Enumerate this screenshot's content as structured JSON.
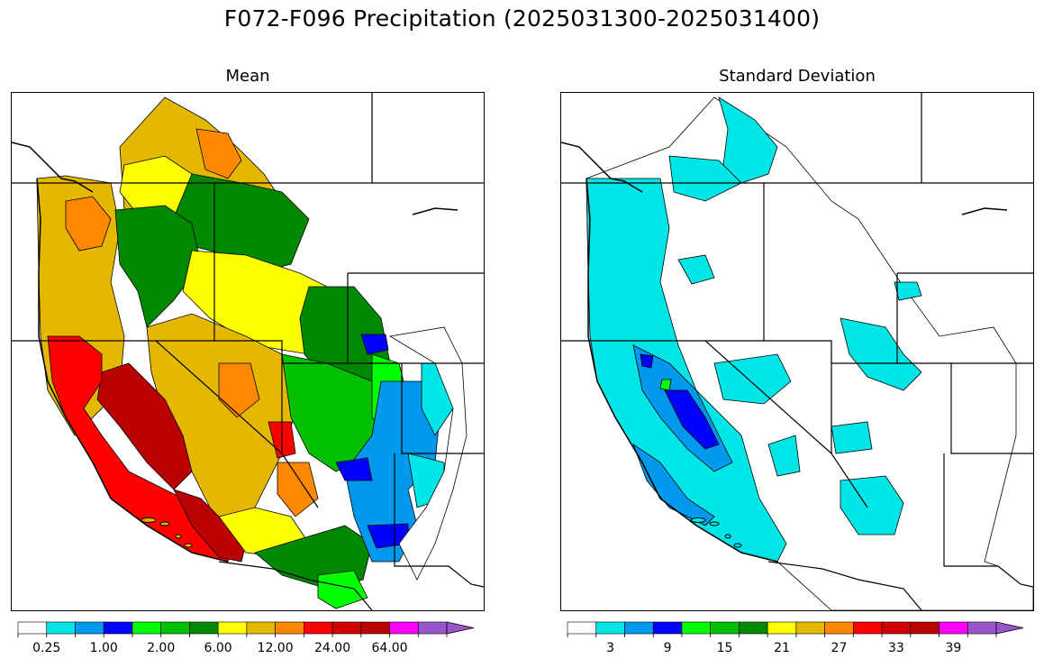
{
  "figure": {
    "title": "F072-F096 Precipitation (2025031300-2025031400)"
  },
  "panels": [
    {
      "title": "Mean",
      "colorbar": {
        "colors": [
          "#ffffff",
          "#00e5e5",
          "#0099ee",
          "#0000ff",
          "#00ff00",
          "#00c000",
          "#008800",
          "#ffff00",
          "#e5b800",
          "#ff8800",
          "#ff0000",
          "#d00000",
          "#bb0000",
          "#ff00ff",
          "#9955cc"
        ],
        "tick_labels": [
          "0.25",
          "1.00",
          "2.00",
          "6.00",
          "12.00",
          "24.00",
          "64.00"
        ],
        "label_at_boundaries": [
          2,
          4,
          6,
          8,
          10,
          12,
          14
        ]
      },
      "region_levels": {
        "pacific_coast": "#e5b800",
        "sierra": "#bb0000",
        "socal": "#ff0000",
        "great_basin": "#e5b800",
        "northern_rockies": "#008800",
        "eastern_plains": "#0099ee",
        "eastern_plains_edge": "#ffffff"
      }
    },
    {
      "title": "Standard Deviation",
      "colorbar": {
        "colors": [
          "#ffffff",
          "#00e5e5",
          "#0099ee",
          "#0000ff",
          "#00ff00",
          "#00c000",
          "#008800",
          "#ffff00",
          "#e5b800",
          "#ff8800",
          "#ff0000",
          "#d00000",
          "#bb0000",
          "#ff00ff",
          "#9955cc"
        ],
        "tick_labels": [
          "3",
          "9",
          "15",
          "21",
          "27",
          "33",
          "39"
        ],
        "label_at_centers": [
          1,
          3,
          5,
          7,
          9,
          11,
          13
        ]
      },
      "region_levels": {
        "pacific_coast": "#00e5e5",
        "sierra": "#0099ee",
        "interior": "#ffffff"
      }
    }
  ]
}
